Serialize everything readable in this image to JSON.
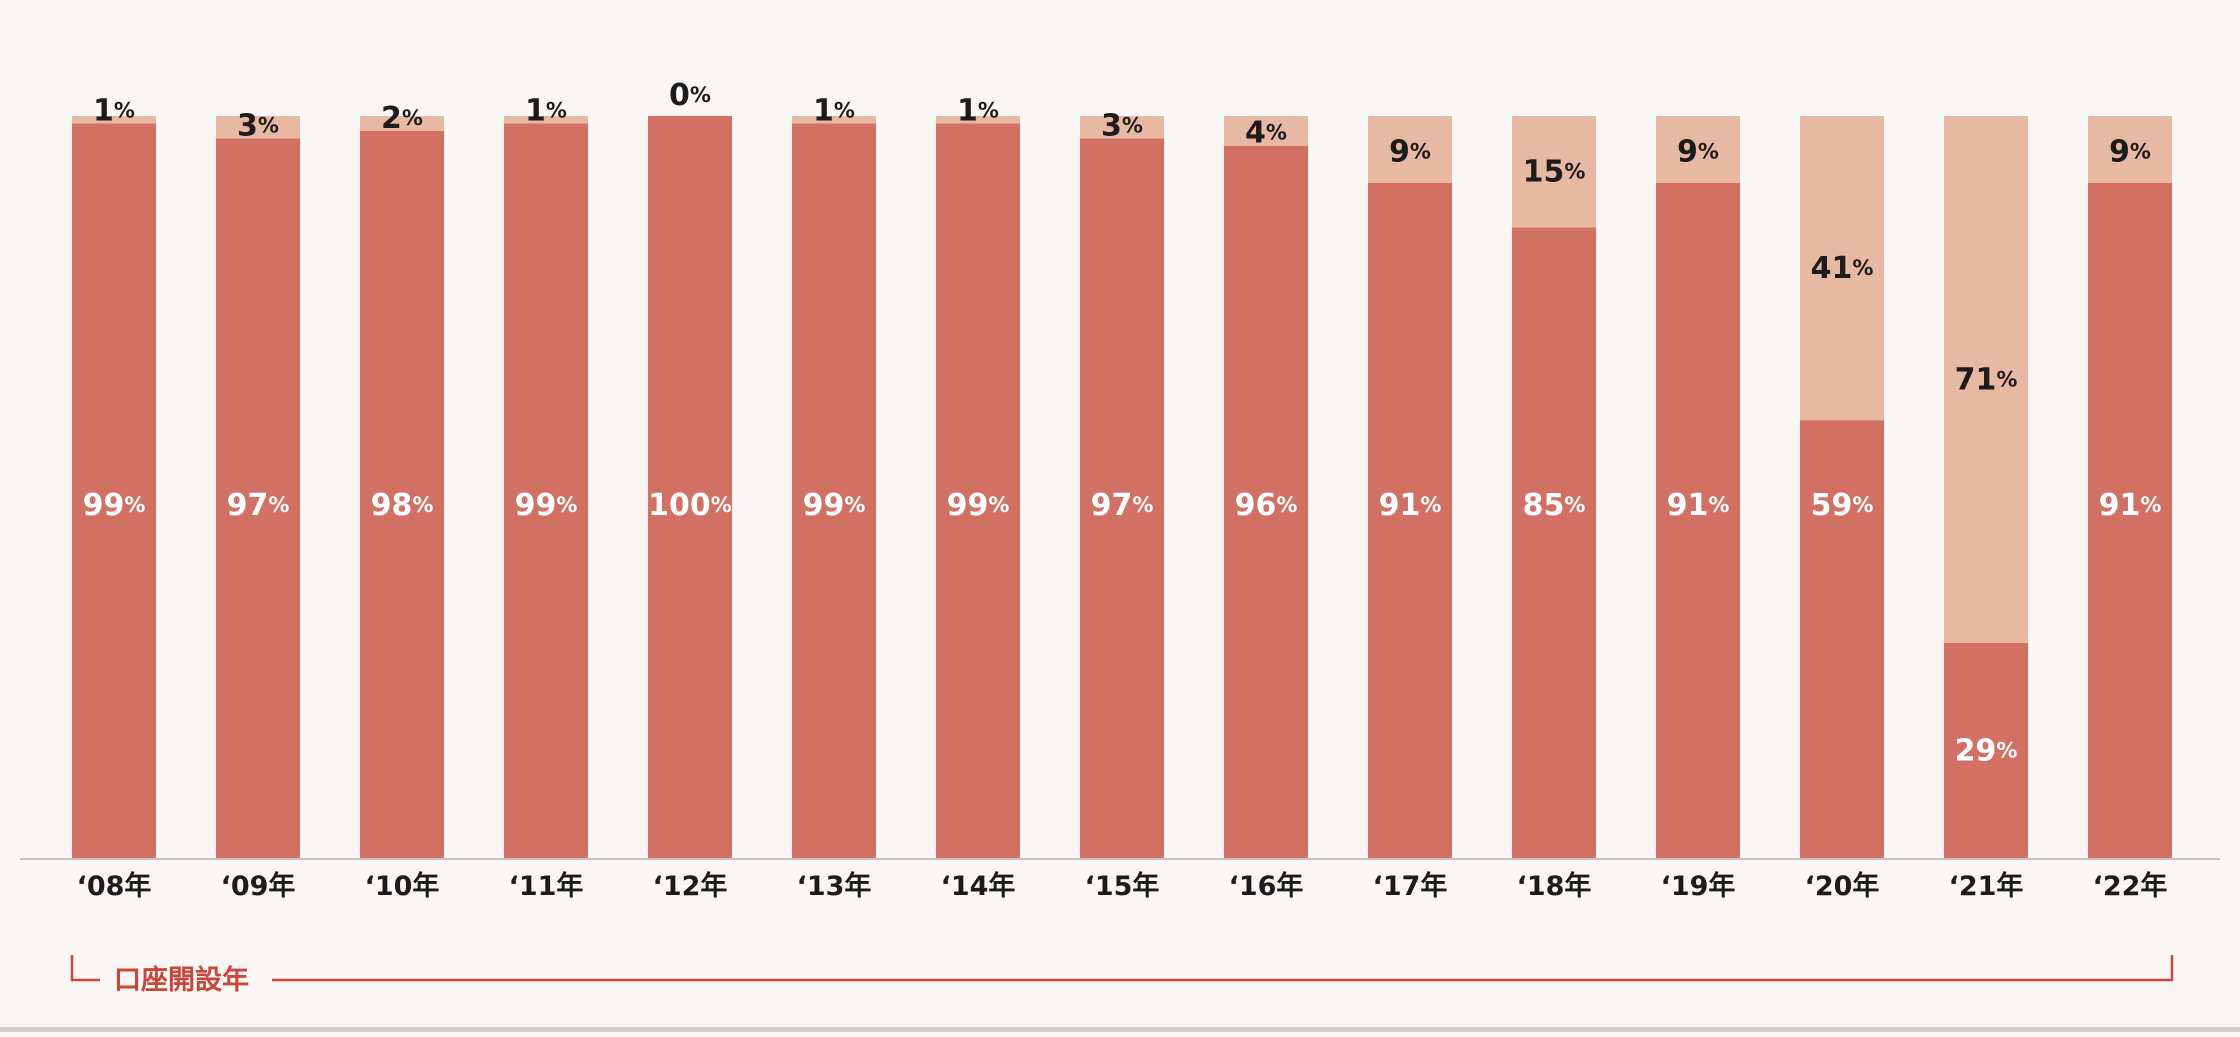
{
  "chart_data": {
    "type": "bar",
    "stacked": true,
    "categories": [
      "‘08年",
      "‘09年",
      "‘10年",
      "‘11年",
      "‘12年",
      "‘13年",
      "‘14年",
      "‘15年",
      "‘16年",
      "‘17年",
      "‘18年",
      "‘19年",
      "‘20年",
      "‘21年",
      "‘22年"
    ],
    "series": [
      {
        "values": [
          99,
          97,
          98,
          99,
          100,
          99,
          99,
          97,
          96,
          91,
          85,
          91,
          59,
          29,
          91
        ],
        "color": "#d27064",
        "label_color": "#ffffff"
      },
      {
        "values": [
          1,
          3,
          2,
          1,
          0,
          1,
          1,
          3,
          4,
          9,
          15,
          9,
          41,
          71,
          9
        ],
        "color": "#e7b8a2",
        "label_color": "#1c1c1c"
      }
    ],
    "value_suffix": "%",
    "xlabel": "口座開設年",
    "ylim": [
      0,
      100
    ],
    "grid": false,
    "legend": "none"
  },
  "colors": {
    "background": "#faf6f3",
    "axis_line": "#c9c2bd",
    "xlabel": "#c8473a",
    "bracket": "#c8473a"
  }
}
